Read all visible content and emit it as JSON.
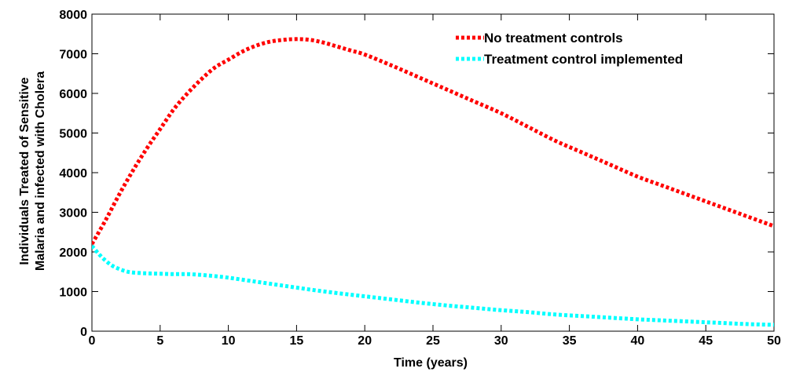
{
  "chart_data": {
    "type": "line",
    "title": "",
    "xlabel": "Time (years)",
    "ylabel_lines": [
      "Individuals Treated of Sensitive",
      "Malaria and infected with Cholera"
    ],
    "xlim": [
      0,
      50
    ],
    "ylim": [
      0,
      8000
    ],
    "xticks": [
      0,
      5,
      10,
      15,
      20,
      25,
      30,
      35,
      40,
      45,
      50
    ],
    "yticks": [
      0,
      1000,
      2000,
      3000,
      4000,
      5000,
      6000,
      7000,
      8000
    ],
    "grid": false,
    "legend_position": "top-right",
    "series": [
      {
        "name": "No treatment controls",
        "color": "#ff0000",
        "style": "dotted",
        "x": [
          0,
          1,
          2,
          3,
          4,
          5,
          6,
          7,
          8,
          9,
          10,
          11,
          12,
          13,
          14,
          15,
          16,
          17,
          18,
          19,
          20,
          22,
          24,
          26,
          28,
          30,
          32,
          34,
          36,
          38,
          40,
          42,
          44,
          46,
          48,
          50
        ],
        "y": [
          2200,
          2800,
          3450,
          4050,
          4600,
          5100,
          5600,
          6000,
          6350,
          6650,
          6850,
          7050,
          7200,
          7300,
          7350,
          7370,
          7350,
          7280,
          7180,
          7080,
          6980,
          6700,
          6400,
          6100,
          5800,
          5500,
          5150,
          4800,
          4500,
          4200,
          3900,
          3650,
          3400,
          3150,
          2900,
          2650
        ]
      },
      {
        "name": "Treatment control implemented",
        "color": "#00ffff",
        "style": "dotted",
        "x": [
          0,
          0.5,
          1,
          1.5,
          2,
          2.5,
          3,
          4,
          5,
          6,
          7,
          8,
          9,
          10,
          12,
          14,
          16,
          18,
          20,
          22,
          24,
          26,
          28,
          30,
          32,
          34,
          36,
          38,
          40,
          42,
          44,
          46,
          48,
          50
        ],
        "y": [
          2150,
          1950,
          1780,
          1650,
          1570,
          1510,
          1480,
          1460,
          1450,
          1440,
          1440,
          1420,
          1390,
          1350,
          1250,
          1150,
          1050,
          960,
          880,
          800,
          720,
          650,
          590,
          530,
          480,
          420,
          380,
          340,
          300,
          270,
          240,
          210,
          180,
          160
        ]
      }
    ]
  }
}
